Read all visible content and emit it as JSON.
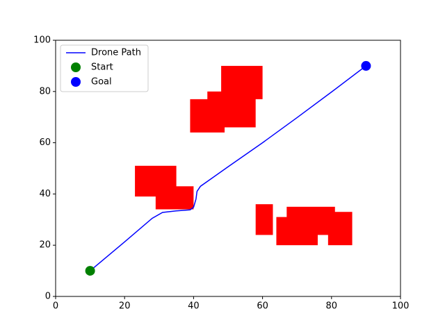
{
  "chart_data": {
    "type": "line",
    "xlim": [
      0,
      100
    ],
    "ylim": [
      0,
      100
    ],
    "xticks": [
      0,
      20,
      40,
      60,
      80,
      100
    ],
    "yticks": [
      0,
      20,
      40,
      60,
      80,
      100
    ],
    "legend": "upper left",
    "series": [
      {
        "name": "Drone Path",
        "color": "#0000ff",
        "kind": "line",
        "x": [
          10,
          20,
          28,
          31,
          35,
          39,
          40,
          40.7,
          41,
          42,
          50,
          60,
          70,
          80,
          90
        ],
        "values": [
          10,
          21.3,
          30.5,
          32.8,
          33.4,
          33.8,
          34.8,
          38,
          41,
          43,
          50.6,
          60,
          69.8,
          79.8,
          90
        ]
      },
      {
        "name": "Start",
        "color": "#008000",
        "kind": "scatter",
        "x": [
          10
        ],
        "values": [
          10
        ]
      },
      {
        "name": "Goal",
        "color": "#0000ff",
        "kind": "scatter",
        "x": [
          90
        ],
        "values": [
          90
        ]
      }
    ],
    "obstacles": {
      "color": "#ff0000",
      "rects": [
        [
          39,
          49,
          64,
          77
        ],
        [
          44,
          58,
          66,
          80
        ],
        [
          48,
          60,
          77,
          90
        ],
        [
          23,
          35,
          39,
          51
        ],
        [
          29,
          40,
          34,
          43
        ],
        [
          58,
          63,
          24,
          36
        ],
        [
          64,
          76,
          20,
          31
        ],
        [
          67,
          81,
          24,
          35
        ],
        [
          79,
          86,
          20,
          33
        ]
      ]
    }
  }
}
